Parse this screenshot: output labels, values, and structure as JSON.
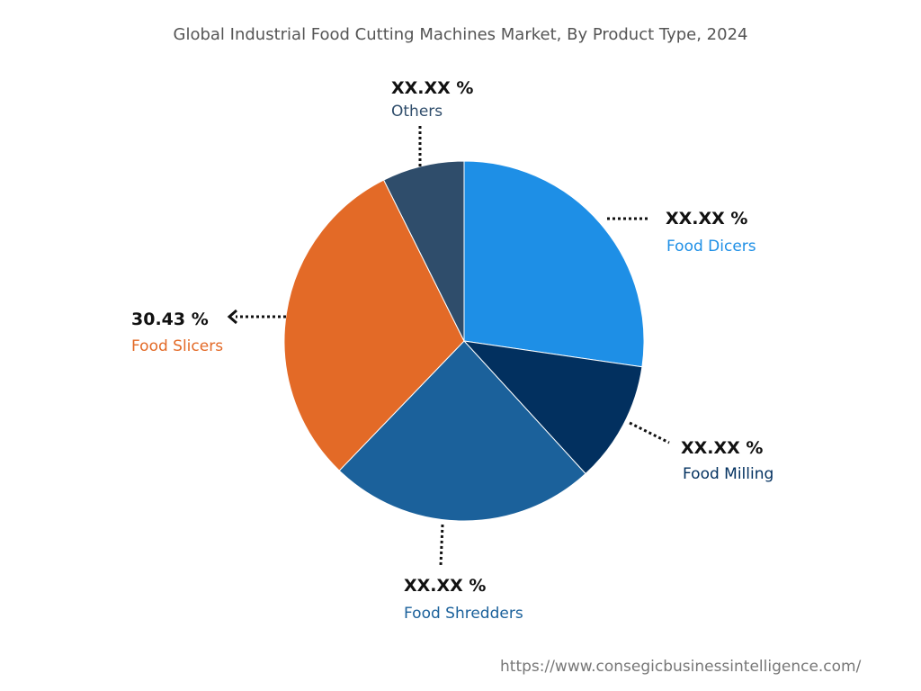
{
  "chart_data": {
    "type": "pie",
    "title": "Global Industrial Food Cutting Machines Market, By Product Type, 2024",
    "start_angle_deg": 0,
    "direction": "clockwise",
    "slices": [
      {
        "name": "Food Dicers",
        "value": 27.3,
        "label": "XX.XX %",
        "color": "#1E8FE6"
      },
      {
        "name": "Food Milling",
        "value": 10.9,
        "label": "XX.XX %",
        "color": "#02305F"
      },
      {
        "name": "Food Shredders",
        "value": 24.0,
        "label": "XX.XX %",
        "color": "#1B619B"
      },
      {
        "name": "Food Slicers",
        "value": 30.43,
        "label": "30.43 %",
        "color": "#E36A27"
      },
      {
        "name": "Others",
        "value": 7.37,
        "label": "XX.XX %",
        "color": "#2F4D6B"
      }
    ]
  },
  "footer": {
    "url": "https://www.consegicbusinessintelligence.com/"
  }
}
